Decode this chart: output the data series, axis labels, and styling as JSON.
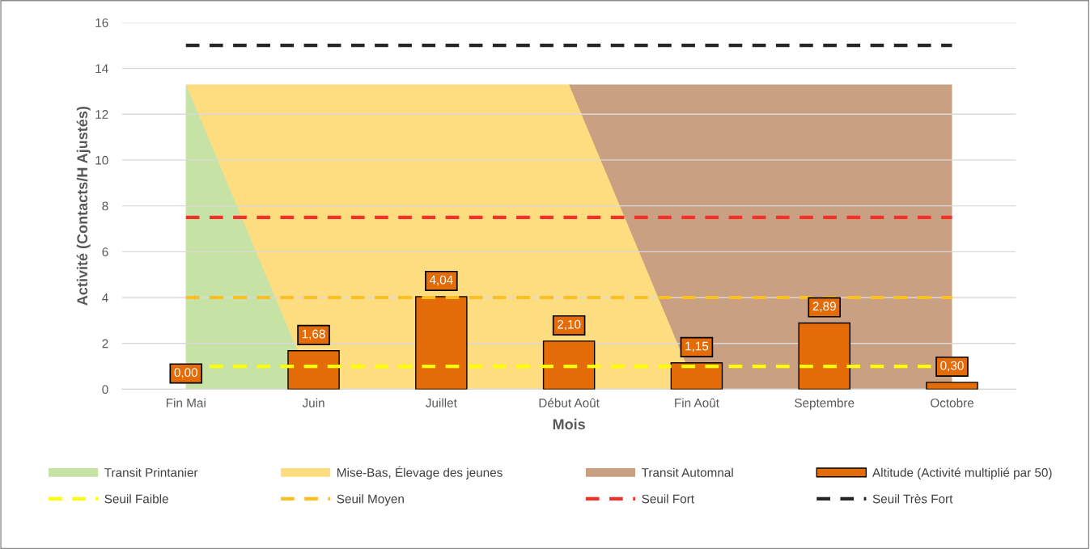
{
  "chart_data": {
    "type": "bar",
    "xlabel": "Mois",
    "ylabel": "Activité (Contacts/H Ajustés)",
    "categories": [
      "Fin Mai",
      "Juin",
      "Juillet",
      "Début Août",
      "Fin Août",
      "Septembre",
      "Octobre"
    ],
    "series": [
      {
        "name": "Transit Printanier",
        "type": "area",
        "color": "#c6e3a5",
        "values": [
          13.3,
          0,
          null,
          null,
          null,
          null,
          null
        ]
      },
      {
        "name": "Mise-Bas, Élevage des jeunes",
        "type": "area",
        "color": "#fddd80",
        "values": [
          13.3,
          13.3,
          13.3,
          13.3,
          0,
          null,
          null
        ]
      },
      {
        "name": "Transit Automnal",
        "type": "area",
        "color": "#c9a082",
        "values": [
          null,
          null,
          null,
          13.3,
          13.3,
          13.3,
          13.3
        ]
      },
      {
        "name": "Altitude (Activité multiplié par 50)",
        "color": "#e36c09",
        "values": [
          0.0,
          1.68,
          4.04,
          2.1,
          1.15,
          2.89,
          0.3
        ],
        "value_labels": [
          "0,00",
          "1,68",
          "4,04",
          "2,10",
          "1,15",
          "2,89",
          "0,30"
        ]
      }
    ],
    "ref_lines": [
      {
        "axis": "y",
        "value": 1,
        "label": "Seuil Faible",
        "color": "#ffff00",
        "line_style": "dashed"
      },
      {
        "axis": "y",
        "value": 4,
        "label": "Seuil Moyen",
        "color": "#fbbf22",
        "line_style": "dashed"
      },
      {
        "axis": "y",
        "value": 7.5,
        "label": "Seuil Fort",
        "color": "#f5302a",
        "line_style": "dashed"
      },
      {
        "axis": "y",
        "value": 15,
        "label": "Seuil Très Fort",
        "color": "#262626",
        "line_style": "dashed"
      }
    ],
    "ylim": [
      0,
      16
    ],
    "yticks": [
      0,
      2,
      4,
      6,
      8,
      10,
      12,
      14,
      16
    ],
    "grid": "y",
    "legend": "bottom"
  }
}
